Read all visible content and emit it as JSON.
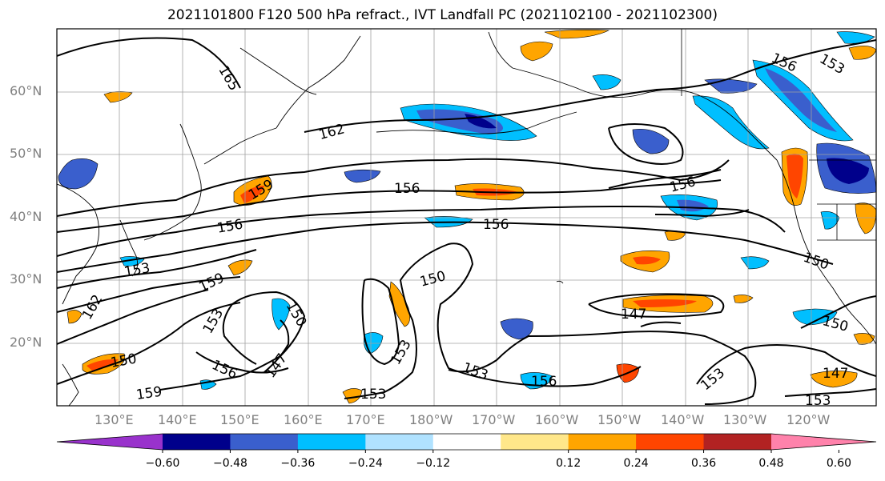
{
  "title": "2021101800 F120 500 hPa refract., IVT Landfall PC (2021102100 - 2021102300)",
  "lat_labels": [
    "60°N",
    "50°N",
    "40°N",
    "30°N",
    "20°N"
  ],
  "lon_labels": [
    "130°E",
    "140°E",
    "150°E",
    "160°E",
    "170°E",
    "180°W",
    "170°W",
    "160°W",
    "150°W",
    "140°W",
    "130°W",
    "120°W"
  ],
  "contour_labels": [
    "165",
    "162",
    "159",
    "156",
    "156",
    "156",
    "156",
    "153",
    "156",
    "159",
    "153",
    "162",
    "150",
    "147",
    "150",
    "153",
    "150",
    "147",
    "150",
    "159",
    "156",
    "153",
    "153",
    "147",
    "150",
    "156",
    "153",
    "153",
    "147",
    "159",
    "153"
  ],
  "colorbar": {
    "ticks": [
      "−0.60",
      "−0.48",
      "−0.36",
      "−0.24",
      "−0.12",
      "0.12",
      "0.24",
      "0.36",
      "0.48",
      "0.60"
    ],
    "colors": [
      "#9932cc",
      "#00008b",
      "#3a5fcd",
      "#00bfff",
      "#b0e2ff",
      "#ffffff",
      "#ffe78a",
      "#ffa500",
      "#ff4500",
      "#b22222",
      "#ff82ab"
    ]
  }
}
